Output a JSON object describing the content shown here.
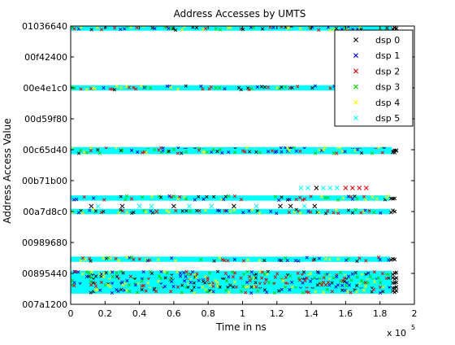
{
  "chart_data": {
    "type": "scatter",
    "title": "Address Accesses by UMTS",
    "xlabel": "Time in ns",
    "ylabel": "Address Access Value",
    "x_multiplier": "x 10",
    "x_multiplier_exp": "5",
    "xlim": [
      0,
      2
    ],
    "x_ticks": [
      "0",
      "0.2",
      "0.4",
      "0.6",
      "0.8",
      "1",
      "1.2",
      "1.4",
      "1.6",
      "1.8",
      "2"
    ],
    "ylim": [
      "007a1200",
      "01036640"
    ],
    "y_ticks": [
      "01036640",
      "00f42400",
      "00e4e1c0",
      "00d59f80",
      "00c65d40",
      "00b71b00",
      "00a7d8c0",
      "00989680",
      "00895440",
      "007a1200"
    ],
    "grid": false,
    "legend_position": "top-right",
    "marker": "x",
    "series": [
      {
        "name": "dsp 0",
        "color": "#000000"
      },
      {
        "name": "dsp 1",
        "color": "#0000cc"
      },
      {
        "name": "dsp 2",
        "color": "#dd0000"
      },
      {
        "name": "dsp 3",
        "color": "#00cc00"
      },
      {
        "name": "dsp 4",
        "color": "#ffff00"
      },
      {
        "name": "dsp 5",
        "color": "#00ffff"
      }
    ],
    "bands": [
      {
        "address": "01026640",
        "x_end": 1.87
      },
      {
        "address": "00e4e1c0",
        "x_end": 1.87
      },
      {
        "address": "00c65d40",
        "x_end": 1.87
      },
      {
        "address": "00c58000",
        "x_end": 1.87
      },
      {
        "address": "00ae8000",
        "x_end": 1.86
      },
      {
        "address": "00a7d8c0",
        "x_end": 1.86
      },
      {
        "address": "00905000",
        "x_end": 1.86
      },
      {
        "address": "00895440",
        "x_end": 1.87
      },
      {
        "address": "00870000",
        "x_end": 1.87
      },
      {
        "address": "00850000",
        "x_end": 1.87
      },
      {
        "address": "0082a000",
        "x_end": 1.87
      },
      {
        "address": "0080a000",
        "x_end": 1.87
      }
    ],
    "sparse_points": [
      {
        "x": 1.34,
        "address": "00b38000",
        "series": "dsp 5"
      },
      {
        "x": 1.38,
        "address": "00b38000",
        "series": "dsp 5"
      },
      {
        "x": 1.43,
        "address": "00b38000",
        "series": "dsp 0"
      },
      {
        "x": 1.47,
        "address": "00b38000",
        "series": "dsp 5"
      },
      {
        "x": 1.51,
        "address": "00b38000",
        "series": "dsp 5"
      },
      {
        "x": 1.55,
        "address": "00b38000",
        "series": "dsp 5"
      },
      {
        "x": 1.6,
        "address": "00b38000",
        "series": "dsp 2"
      },
      {
        "x": 1.64,
        "address": "00b38000",
        "series": "dsp 2"
      },
      {
        "x": 1.68,
        "address": "00b38000",
        "series": "dsp 2"
      },
      {
        "x": 1.72,
        "address": "00b38000",
        "series": "dsp 2"
      },
      {
        "x": 0.12,
        "address": "00aa8000",
        "series": "dsp 0"
      },
      {
        "x": 0.16,
        "address": "00aa8000",
        "series": "dsp 5"
      },
      {
        "x": 0.3,
        "address": "00aa8000",
        "series": "dsp 0"
      },
      {
        "x": 0.4,
        "address": "00aa8000",
        "series": "dsp 5"
      },
      {
        "x": 0.47,
        "address": "00aa8000",
        "series": "dsp 5"
      },
      {
        "x": 0.6,
        "address": "00aa8000",
        "series": "dsp 0"
      },
      {
        "x": 0.69,
        "address": "00aa8000",
        "series": "dsp 5"
      },
      {
        "x": 0.82,
        "address": "00aa8000",
        "series": "dsp 5"
      },
      {
        "x": 0.95,
        "address": "00aa8000",
        "series": "dsp 0"
      },
      {
        "x": 1.08,
        "address": "00aa8000",
        "series": "dsp 5"
      },
      {
        "x": 1.22,
        "address": "00aa8000",
        "series": "dsp 0"
      },
      {
        "x": 1.28,
        "address": "00aa8000",
        "series": "dsp 0"
      },
      {
        "x": 1.36,
        "address": "00aa8000",
        "series": "dsp 5"
      },
      {
        "x": 1.42,
        "address": "00aa8000",
        "series": "dsp 0"
      },
      {
        "x": 0.5,
        "address": "00a7d8c0",
        "series": "dsp 2"
      }
    ]
  }
}
